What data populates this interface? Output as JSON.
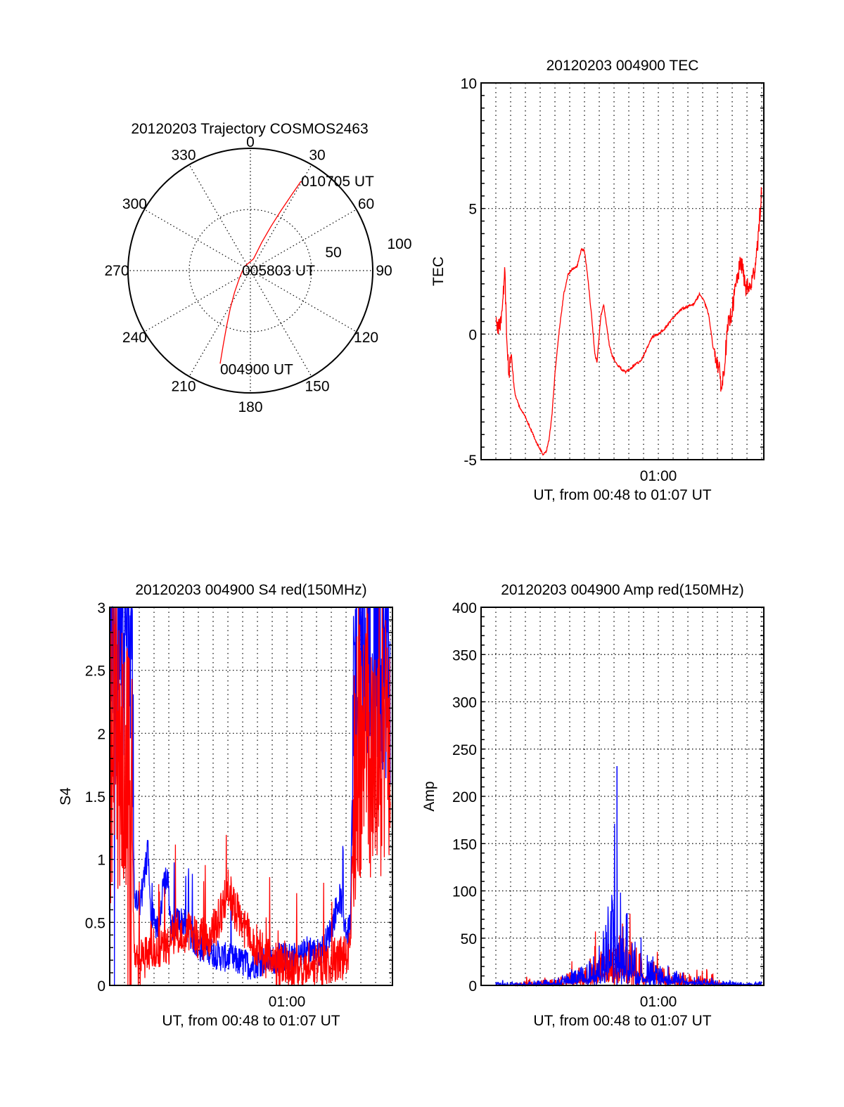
{
  "chart_data": [
    {
      "id": "polar",
      "type": "polar",
      "title": "20120203 Trajectory COSMOS2463",
      "angle_labels": [
        "0",
        "30",
        "60",
        "90",
        "120",
        "150",
        "180",
        "210",
        "240",
        "270",
        "300",
        "330"
      ],
      "angle_values_deg": [
        0,
        30,
        60,
        90,
        120,
        150,
        180,
        210,
        240,
        270,
        300,
        330
      ],
      "radial_labels": [
        "50",
        "100"
      ],
      "radial_values": [
        50,
        100
      ],
      "rlim": [
        0,
        100
      ],
      "grid": true,
      "track_color": "#ff0000",
      "track": [
        {
          "az": 198,
          "r": 80
        },
        {
          "az": 200,
          "r": 65
        },
        {
          "az": 203,
          "r": 50
        },
        {
          "az": 208,
          "r": 35
        },
        {
          "az": 216,
          "r": 22
        },
        {
          "az": 235,
          "r": 11
        },
        {
          "az": 300,
          "r": 6
        },
        {
          "az": 15,
          "r": 10
        },
        {
          "az": 22,
          "r": 25
        },
        {
          "az": 25,
          "r": 40
        },
        {
          "az": 27,
          "r": 55
        },
        {
          "az": 28.5,
          "r": 70
        },
        {
          "az": 29.5,
          "r": 84
        }
      ],
      "annotations": [
        {
          "text": "010705 UT",
          "at": "end"
        },
        {
          "text": "005803 UT",
          "at": "center"
        },
        {
          "text": "004900 UT",
          "at": "start"
        }
      ]
    },
    {
      "id": "tec",
      "type": "line",
      "title": "20120203 004900 TEC",
      "xlabel": "UT, from 00:48 to 01:07 UT",
      "ylabel": "TEC",
      "x_unit": "minutes after 00:48 UT",
      "xlim": [
        0,
        19.14
      ],
      "ylim": [
        -5,
        10
      ],
      "yticks": [
        -5,
        0,
        5,
        10
      ],
      "ytick_labels": [
        "-5",
        "0",
        "5",
        "10"
      ],
      "xticks": [
        12
      ],
      "xtick_labels": [
        "01:00"
      ],
      "x_grid_step_min": 1,
      "grid": true,
      "series": [
        {
          "name": "TEC",
          "color": "#ff0000",
          "noise": 0.35,
          "x": [
            1.0,
            1.2,
            1.35,
            1.5,
            1.6,
            1.75,
            1.9,
            2.0,
            2.1,
            2.3,
            2.6,
            3.0,
            3.3,
            3.6,
            3.9,
            4.2,
            4.4,
            4.6,
            4.8,
            5.0,
            5.3,
            5.6,
            5.9,
            6.2,
            6.5,
            6.8,
            7.0,
            7.2,
            7.5,
            7.7,
            7.85,
            8.1,
            8.3,
            8.5,
            8.7,
            8.9,
            9.2,
            9.5,
            9.8,
            10.1,
            10.4,
            10.8,
            11.2,
            11.6,
            12.0,
            12.4,
            12.8,
            13.2,
            13.6,
            14.0,
            14.4,
            14.8,
            15.1,
            15.4,
            15.7,
            15.9,
            16.1,
            16.3,
            16.5,
            16.7,
            17.0,
            17.3,
            17.6,
            17.9,
            18.2,
            18.5,
            18.8,
            19.0
          ],
          "y": [
            0.5,
            0.3,
            0.5,
            1.5,
            2.6,
            -0.5,
            -1.6,
            -0.6,
            -1.4,
            -2.4,
            -2.9,
            -3.3,
            -3.7,
            -4.1,
            -4.5,
            -4.8,
            -4.7,
            -4.2,
            -3.2,
            -1.6,
            0.2,
            1.6,
            2.4,
            2.6,
            2.7,
            3.4,
            3.3,
            2.4,
            0.6,
            -0.8,
            -1.1,
            0.7,
            1.2,
            0.3,
            -0.5,
            -0.9,
            -1.2,
            -1.4,
            -1.5,
            -1.4,
            -1.2,
            -1.1,
            -0.6,
            -0.1,
            0.0,
            0.2,
            0.5,
            0.8,
            1.0,
            1.1,
            1.2,
            1.6,
            1.3,
            0.8,
            -0.5,
            -0.9,
            -1.4,
            -2.2,
            -1.0,
            0.2,
            1.0,
            2.1,
            2.9,
            1.9,
            1.8,
            2.5,
            4.1,
            5.8
          ]
        }
      ]
    },
    {
      "id": "s4",
      "type": "line",
      "title": "20120203 004900 S4 red(150MHz)",
      "xlabel": "UT, from 00:48 to 01:07 UT",
      "ylabel": "S4",
      "x_unit": "minutes after 00:48 UT",
      "xlim": [
        0,
        19.14
      ],
      "ylim": [
        0,
        3
      ],
      "yticks": [
        0,
        0.5,
        1,
        1.5,
        2,
        2.5,
        3
      ],
      "ytick_labels": [
        "0",
        "0.5",
        "1",
        "1.5",
        "2",
        "2.5",
        "3"
      ],
      "xticks": [
        12
      ],
      "xtick_labels": [
        "01:00"
      ],
      "x_grid_step_min": 1,
      "grid": true,
      "series": [
        {
          "name": "blue",
          "color": "#0000ff",
          "noise": 0.12,
          "x": [
            0.0,
            0.3,
            0.6,
            0.9,
            1.2,
            1.5,
            1.65,
            1.8,
            2.0,
            2.3,
            2.6,
            2.8,
            3.0,
            3.3,
            3.6,
            3.9,
            4.2,
            4.5,
            4.8,
            5.1,
            5.5,
            6.0,
            6.5,
            7.0,
            7.5,
            8.0,
            8.5,
            9.0,
            9.5,
            10.0,
            10.5,
            11.0,
            11.5,
            12.0,
            12.5,
            13.0,
            13.5,
            14.0,
            14.5,
            15.0,
            15.3,
            15.6,
            15.9,
            16.1,
            16.3,
            16.5,
            16.8,
            17.1,
            17.4,
            17.7,
            18.0,
            18.3,
            18.6,
            19.0
          ],
          "y": [
            3.0,
            3.0,
            2.8,
            2.9,
            2.9,
            2.7,
            0.75,
            0.7,
            0.65,
            0.8,
            1.1,
            0.6,
            0.5,
            0.45,
            0.75,
            0.9,
            0.4,
            0.5,
            0.52,
            0.48,
            0.4,
            0.3,
            0.3,
            0.26,
            0.23,
            0.22,
            0.2,
            0.18,
            0.16,
            0.18,
            0.2,
            0.2,
            0.22,
            0.23,
            0.23,
            0.24,
            0.3,
            0.25,
            0.3,
            0.45,
            0.6,
            0.7,
            0.5,
            0.4,
            0.5,
            2.2,
            2.6,
            2.7,
            2.6,
            2.5,
            2.6,
            2.7,
            2.5,
            2.6
          ]
        },
        {
          "name": "red",
          "color": "#ff0000",
          "noise": 0.18,
          "x": [
            0.0,
            0.3,
            0.6,
            0.9,
            1.2,
            1.5,
            1.65,
            1.8,
            2.0,
            2.3,
            2.6,
            2.8,
            3.0,
            3.3,
            3.6,
            3.9,
            4.2,
            4.5,
            4.8,
            5.1,
            5.5,
            6.0,
            6.5,
            7.0,
            7.5,
            8.0,
            8.5,
            9.0,
            9.5,
            10.0,
            10.5,
            11.0,
            11.5,
            12.0,
            12.5,
            13.0,
            13.5,
            14.0,
            14.5,
            15.0,
            15.3,
            15.6,
            15.9,
            16.1,
            16.3,
            16.5,
            16.8,
            17.1,
            17.4,
            17.7,
            18.0,
            18.3,
            18.6,
            19.0
          ],
          "y": [
            1.6,
            2.2,
            1.8,
            1.9,
            1.7,
            1.5,
            0.2,
            0.15,
            0.17,
            0.2,
            0.25,
            0.35,
            0.3,
            0.3,
            0.3,
            0.32,
            0.35,
            0.42,
            0.38,
            0.35,
            0.45,
            0.38,
            0.35,
            0.42,
            0.55,
            0.75,
            0.6,
            0.5,
            0.4,
            0.3,
            0.22,
            0.18,
            0.16,
            0.15,
            0.14,
            0.16,
            0.18,
            0.15,
            0.18,
            0.2,
            0.2,
            0.22,
            0.22,
            0.25,
            0.3,
            1.5,
            2.0,
            1.9,
            2.2,
            1.8,
            2.0,
            1.9,
            2.1,
            2.0
          ]
        }
      ]
    },
    {
      "id": "amp",
      "type": "line",
      "title": "20120203 004900 Amp red(150MHz)",
      "xlabel": "UT, from 00:48 to 01:07 UT",
      "ylabel": "Amp",
      "x_unit": "minutes after 00:48 UT",
      "xlim": [
        0,
        19.14
      ],
      "ylim": [
        0,
        400
      ],
      "yticks": [
        0,
        50,
        100,
        150,
        200,
        250,
        300,
        350,
        400
      ],
      "ytick_labels": [
        "0",
        "50",
        "100",
        "150",
        "200",
        "250",
        "300",
        "350",
        "400"
      ],
      "xticks": [
        12
      ],
      "xtick_labels": [
        "01:00"
      ],
      "x_grid_step_min": 1,
      "grid": true,
      "peak": {
        "series": "blue",
        "x": 9.2,
        "y": 232
      },
      "series": [
        {
          "name": "red",
          "color": "#ff0000",
          "noise": 0.9,
          "x": [
            1.0,
            2.0,
            3.0,
            4.0,
            5.0,
            6.0,
            6.5,
            7.0,
            7.5,
            8.0,
            8.5,
            9.0,
            9.5,
            10.0,
            10.5,
            11.0,
            11.5,
            12.0,
            12.5,
            13.0,
            13.5,
            14.0,
            14.5,
            15.0,
            15.5,
            16.0,
            16.5,
            17.0,
            18.0,
            19.0
          ],
          "y": [
            0,
            0,
            3,
            3,
            4,
            8,
            10,
            12,
            16,
            20,
            24,
            28,
            28,
            26,
            22,
            18,
            15,
            12,
            10,
            8,
            7,
            8,
            10,
            10,
            8,
            4,
            0,
            0,
            0,
            0
          ]
        },
        {
          "name": "blue",
          "color": "#0000ff",
          "noise": 0.8,
          "x": [
            1.0,
            2.0,
            3.0,
            4.0,
            5.0,
            6.0,
            6.5,
            7.0,
            7.5,
            8.0,
            8.5,
            9.0,
            9.5,
            10.0,
            10.5,
            11.0,
            11.5,
            12.0,
            12.5,
            13.0,
            13.5,
            14.0,
            14.5,
            15.0,
            15.5,
            16.0,
            16.5,
            17.0,
            18.0,
            19.0
          ],
          "y": [
            2,
            2,
            2,
            3,
            4,
            8,
            10,
            14,
            18,
            24,
            40,
            60,
            55,
            40,
            28,
            20,
            16,
            12,
            10,
            8,
            8,
            7,
            6,
            5,
            4,
            3,
            2,
            2,
            2,
            2
          ]
        }
      ]
    }
  ]
}
